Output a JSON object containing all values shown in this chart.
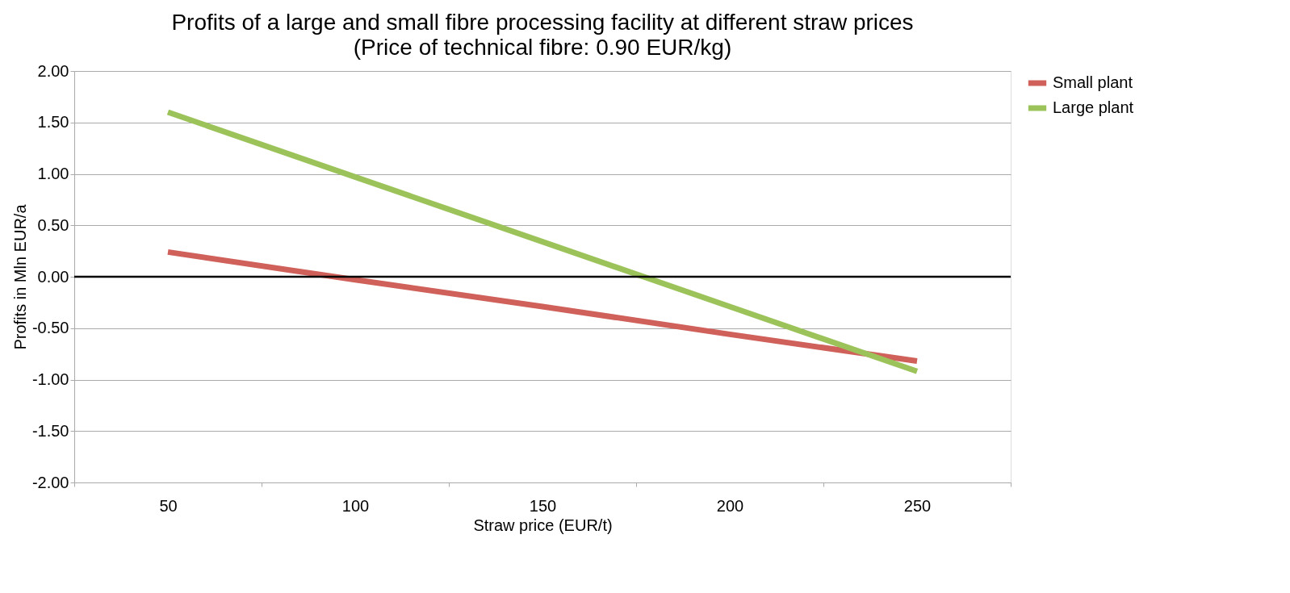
{
  "chart_data": {
    "type": "line",
    "title": "Profits of a large and small fibre processing facility at different straw prices",
    "subtitle": "(Price of technical fibre: 0.90 EUR/kg)",
    "xlabel": "Straw price (EUR/t)",
    "ylabel": "Profits in Mln EUR/a",
    "categories": [
      "50",
      "100",
      "150",
      "200",
      "250"
    ],
    "series": [
      {
        "name": "Small plant",
        "color": "#d0605a",
        "values": [
          0.24,
          -0.03,
          -0.29,
          -0.56,
          -0.82
        ]
      },
      {
        "name": "Large plant",
        "color": "#9bc35a",
        "values": [
          1.6,
          0.97,
          0.34,
          -0.29,
          -0.92
        ]
      }
    ],
    "ylim": [
      -2,
      2
    ],
    "yticks": [
      {
        "value": -2,
        "label": "-2.00"
      },
      {
        "value": -1.5,
        "label": "-1.50"
      },
      {
        "value": -1,
        "label": "-1.00"
      },
      {
        "value": -0.5,
        "label": "-0.50"
      },
      {
        "value": 0,
        "label": "0.00"
      },
      {
        "value": 0.5,
        "label": "0.50"
      },
      {
        "value": 1,
        "label": "1.00"
      },
      {
        "value": 1.5,
        "label": "1.50"
      },
      {
        "value": 2,
        "label": "2.00"
      }
    ],
    "ref_lines": [
      {
        "axis": "y",
        "value": 0,
        "color": "#000000"
      }
    ],
    "grid": "y",
    "legend": "right",
    "marker": "none",
    "line_style": "solid"
  }
}
